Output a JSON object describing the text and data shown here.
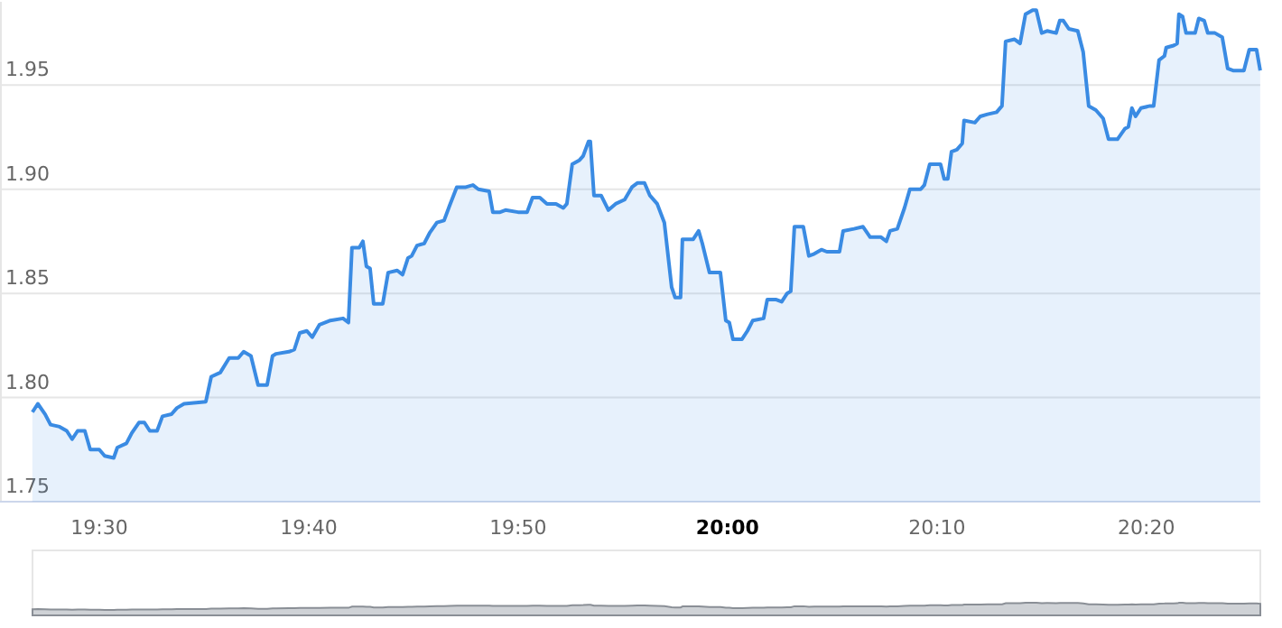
{
  "chart_data": {
    "type": "area",
    "x": [
      19.4468,
      19.4511,
      19.4569,
      19.4612,
      19.4684,
      19.4741,
      19.4784,
      19.4828,
      19.4885,
      19.4928,
      19.5,
      19.5043,
      19.5115,
      19.5144,
      19.5216,
      19.5259,
      19.5316,
      19.5359,
      19.5402,
      19.546,
      19.5503,
      19.5575,
      19.5618,
      19.5675,
      19.5848,
      19.5891,
      19.5963,
      19.6034,
      19.6106,
      19.6149,
      19.6207,
      19.6264,
      19.6336,
      19.6379,
      19.6408,
      19.6509,
      19.6552,
      19.6595,
      19.6652,
      19.6695,
      19.6753,
      19.6839,
      19.694,
      19.6983,
      19.7011,
      19.7069,
      19.7098,
      19.7126,
      19.7155,
      19.7184,
      19.7256,
      19.7299,
      19.7371,
      19.7414,
      19.7457,
      19.7486,
      19.7529,
      19.7586,
      19.7629,
      19.7687,
      19.7744,
      19.7787,
      19.7845,
      19.7917,
      19.7974,
      19.8017,
      19.8103,
      19.8132,
      19.819,
      19.8233,
      19.8333,
      19.8405,
      19.8448,
      19.8506,
      19.8563,
      19.8635,
      19.8693,
      19.8721,
      19.8764,
      19.8822,
      19.8851,
      19.8894,
      19.8908,
      19.8937,
      19.8994,
      19.9052,
      19.9109,
      19.9181,
      19.9239,
      19.9282,
      19.9339,
      19.9382,
      19.944,
      19.9497,
      19.9555,
      19.9583,
      19.9626,
      19.9641,
      19.9727,
      19.977,
      19.9799,
      19.9856,
      19.9943,
      19.9986,
      20.0014,
      20.0043,
      20.0115,
      20.0158,
      20.0201,
      20.0287,
      20.0316,
      20.0388,
      20.0431,
      20.0474,
      20.0503,
      20.0532,
      20.0603,
      20.0647,
      20.069,
      20.0747,
      20.079,
      20.0891,
      20.092,
      20.1006,
      20.1078,
      20.1135,
      20.1221,
      20.1264,
      20.1293,
      20.1351,
      20.1408,
      20.1451,
      20.1537,
      20.1566,
      20.1609,
      20.1695,
      20.1724,
      20.1753,
      20.1782,
      20.1825,
      20.1868,
      20.1882,
      20.1968,
      20.2011,
      20.2069,
      20.2141,
      20.2184,
      20.2213,
      20.2284,
      20.2328,
      20.2371,
      20.2428,
      20.2457,
      20.25,
      20.2543,
      20.2615,
      20.2644,
      20.2672,
      20.2716,
      20.2787,
      20.283,
      20.2874,
      20.2931,
      20.2989,
      20.3032,
      20.3103,
      20.3161,
      20.319,
      20.3218,
      20.3247,
      20.329,
      20.3362,
      20.3391,
      20.3434,
      20.3477,
      20.3491,
      20.3549,
      20.3578,
      20.3592,
      20.3621,
      20.3649,
      20.3721,
      20.375,
      20.3793,
      20.3822,
      20.3879,
      20.3937,
      20.398,
      20.4023,
      20.4109,
      20.4152,
      20.421,
      20.4239
    ],
    "series": [
      {
        "color": "#3a8be3",
        "values": [
          1.793,
          1.797,
          1.792,
          1.787,
          1.786,
          1.784,
          1.78,
          1.784,
          1.784,
          1.775,
          1.775,
          1.772,
          1.771,
          1.776,
          1.778,
          1.783,
          1.788,
          1.788,
          1.784,
          1.784,
          1.791,
          1.792,
          1.795,
          1.797,
          1.798,
          1.81,
          1.812,
          1.819,
          1.819,
          1.822,
          1.82,
          1.806,
          1.806,
          1.82,
          1.821,
          1.822,
          1.823,
          1.831,
          1.832,
          1.829,
          1.835,
          1.837,
          1.838,
          1.836,
          1.872,
          1.872,
          1.875,
          1.863,
          1.862,
          1.845,
          1.845,
          1.86,
          1.861,
          1.859,
          1.867,
          1.868,
          1.873,
          1.874,
          1.879,
          1.884,
          1.885,
          1.892,
          1.901,
          1.901,
          1.902,
          1.9,
          1.899,
          1.889,
          1.889,
          1.89,
          1.889,
          1.889,
          1.896,
          1.896,
          1.893,
          1.893,
          1.891,
          1.893,
          1.912,
          1.914,
          1.916,
          1.923,
          1.923,
          1.897,
          1.897,
          1.89,
          1.893,
          1.895,
          1.901,
          1.903,
          1.903,
          1.897,
          1.893,
          1.884,
          1.853,
          1.848,
          1.848,
          1.876,
          1.876,
          1.88,
          1.874,
          1.86,
          1.86,
          1.837,
          1.836,
          1.828,
          1.828,
          1.832,
          1.837,
          1.838,
          1.847,
          1.847,
          1.846,
          1.85,
          1.851,
          1.882,
          1.882,
          1.868,
          1.869,
          1.871,
          1.87,
          1.87,
          1.88,
          1.881,
          1.882,
          1.877,
          1.877,
          1.875,
          1.88,
          1.881,
          1.891,
          1.9,
          1.9,
          1.902,
          1.912,
          1.912,
          1.905,
          1.905,
          1.918,
          1.919,
          1.922,
          1.933,
          1.932,
          1.935,
          1.936,
          1.937,
          1.94,
          1.971,
          1.972,
          1.97,
          1.984,
          1.986,
          1.986,
          1.975,
          1.976,
          1.975,
          1.981,
          1.981,
          1.977,
          1.976,
          1.966,
          1.94,
          1.938,
          1.934,
          1.924,
          1.924,
          1.929,
          1.93,
          1.939,
          1.935,
          1.939,
          1.94,
          1.94,
          1.962,
          1.964,
          1.968,
          1.969,
          1.97,
          1.984,
          1.983,
          1.975,
          1.975,
          1.982,
          1.981,
          1.975,
          1.975,
          1.973,
          1.958,
          1.957,
          1.957,
          1.967,
          1.967,
          1.957
        ]
      }
    ],
    "xlim": [
      19.421,
      20.424
    ],
    "xticks": [
      {
        "value": 19.5,
        "label": "19:30"
      },
      {
        "value": 19.6667,
        "label": "19:40"
      },
      {
        "value": 19.8333,
        "label": "19:50"
      },
      {
        "value": 20,
        "label": "20:00"
      },
      {
        "value": 20.1667,
        "label": "20:10"
      },
      {
        "value": 20.3333,
        "label": "20:20"
      }
    ],
    "yticks": [
      1.75,
      {
        "value": 1.8,
        "label": "1.80"
      },
      1.85,
      {
        "value": 1.9,
        "label": "1.90"
      },
      1.95
    ],
    "ylim": [
      1.75,
      1.99
    ],
    "grid": "y",
    "legend": false,
    "marker": "none"
  }
}
